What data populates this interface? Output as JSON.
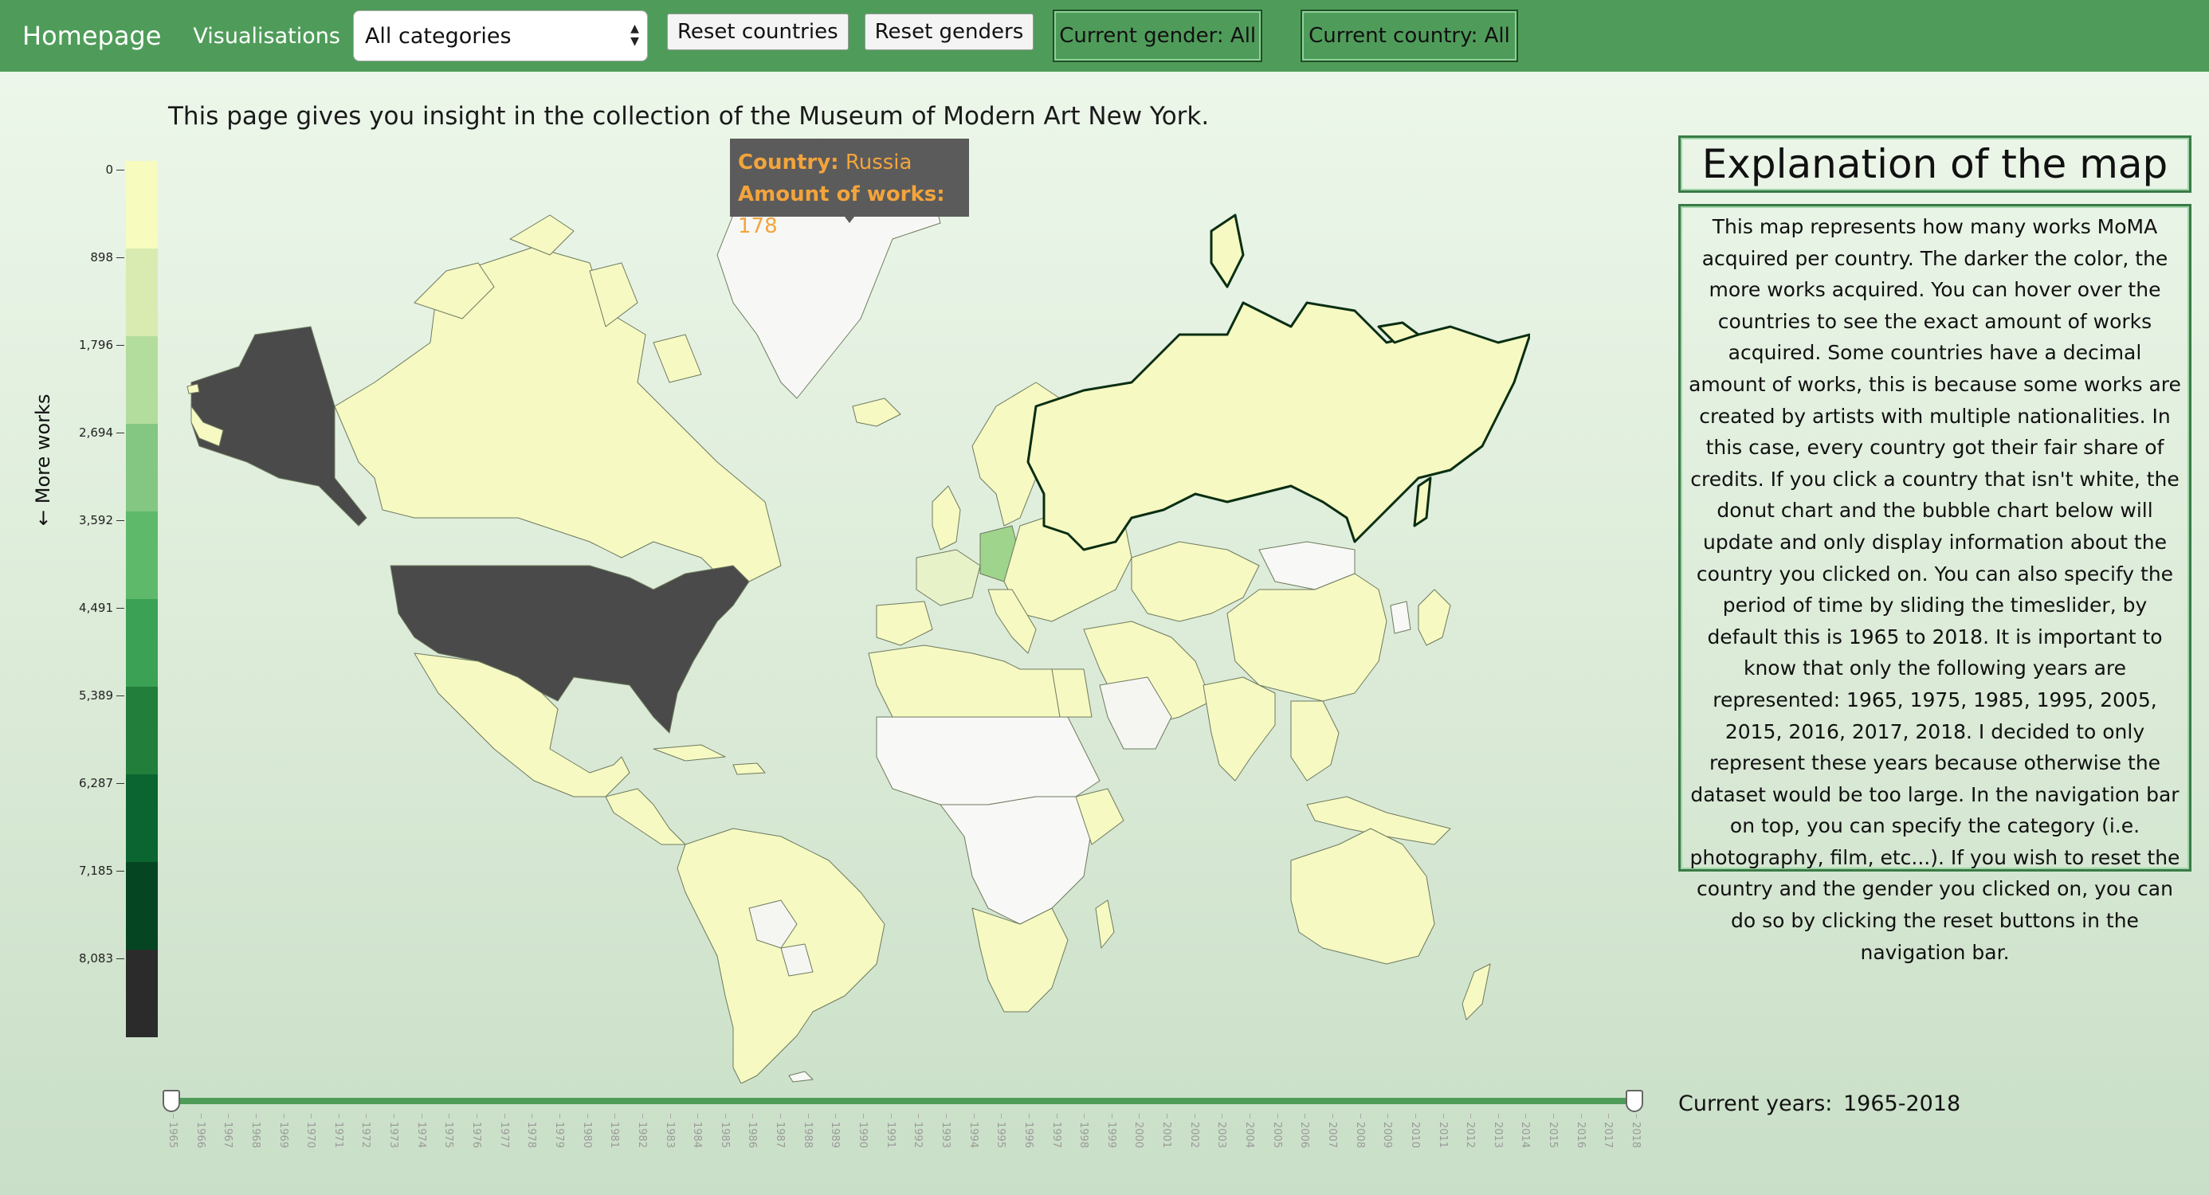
{
  "navbar": {
    "brand": "Homepage",
    "visualisations": "Visualisations",
    "category_select": "All categories",
    "reset_countries": "Reset countries",
    "reset_genders": "Reset genders",
    "current_gender": "Current gender: All",
    "current_country": "Current country: All"
  },
  "intro": "This page gives you insight in the collection of the Museum of Modern Art New York.",
  "legend": {
    "label": "← More works",
    "ticks": [
      "0",
      "898",
      "1,796",
      "2,694",
      "3,592",
      "4,491",
      "5,389",
      "6,287",
      "7,185",
      "8,083"
    ],
    "colors": [
      "#f7fbbd",
      "#d9ebb0",
      "#b3dd9c",
      "#83c782",
      "#5eb96b",
      "#3aa155",
      "#227e3b",
      "#0a6530",
      "#064522",
      "#2a2b2a"
    ]
  },
  "tooltip": {
    "country_key": "Country:",
    "country_value": "Russia",
    "works_key": "Amount of works:",
    "works_value": "178"
  },
  "explanation": {
    "title": "Explanation of the map",
    "body": "This map represents how many works MoMA acquired per country. The darker the color, the more works acquired. You can hover over the countries to see the exact amount of works acquired. Some countries have a decimal amount of works, this is because some works are created by artists with multiple nationalities. In this case, every country got their fair share of credits. If you click a country that isn't white, the donut chart and the bubble chart below will update and only display information about the country you clicked on. You can also specify the period of time by sliding the timeslider, by default this is 1965 to 2018. It is important to know that only the following years are represented: 1965, 1975, 1985, 1995, 2005, 2015, 2016, 2017, 2018. I decided to only represent these years because otherwise the dataset would be too large. In the navigation bar on top, you can specify the category (i.e. photography, film, etc...). If you wish to reset the country and the gender you clicked on, you can do so by clicking the reset buttons in the navigation bar."
  },
  "slider": {
    "start_year": 1965,
    "end_year": 2018,
    "years_label": "Current years:",
    "years_value": "1965-2018"
  }
}
